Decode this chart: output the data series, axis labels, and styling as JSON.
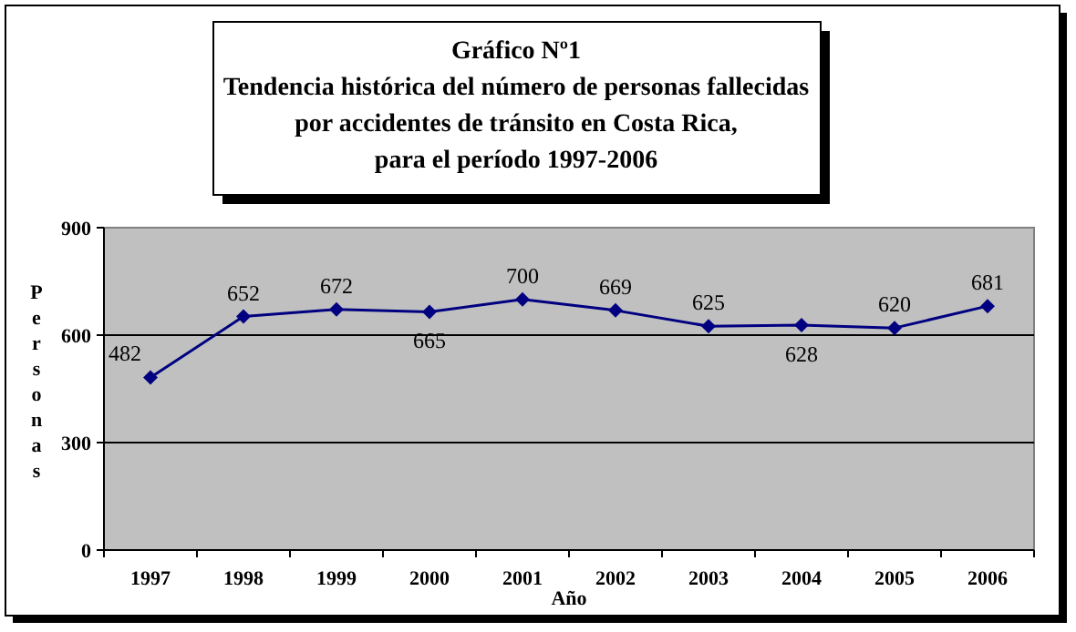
{
  "chart_data": {
    "type": "line",
    "title": "Gráfico Nº1\nTendencia histórica del número de personas fallecidas\npor accidentes de tránsito en Costa Rica,\npara el período 1997-2006",
    "xlabel": "Año",
    "ylabel": "Personas",
    "categories": [
      "1997",
      "1998",
      "1999",
      "2000",
      "2001",
      "2002",
      "2003",
      "2004",
      "2005",
      "2006"
    ],
    "series": [
      {
        "color": "#000080",
        "values": [
          482,
          652,
          672,
          665,
          700,
          669,
          625,
          628,
          620,
          681
        ]
      }
    ],
    "ylim": [
      0,
      900
    ],
    "yticks": [
      0,
      300,
      600,
      900
    ],
    "grid": "y",
    "marker": "diamond",
    "line_style": "solid",
    "data_labels": true
  }
}
